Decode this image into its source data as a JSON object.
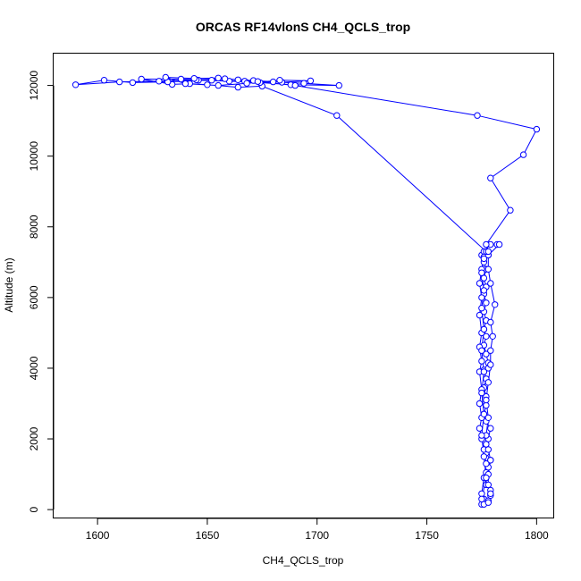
{
  "chart_data": {
    "type": "line",
    "title": "ORCAS RF14vlonS CH4_QCLS_trop",
    "xlabel": "CH4_QCLS_trop",
    "ylabel": "Altitude (m)",
    "xlim": [
      1580,
      1808
    ],
    "ylim": [
      -250,
      12900
    ],
    "xticks": [
      1600,
      1650,
      1700,
      1750,
      1800
    ],
    "yticks": [
      0,
      2000,
      4000,
      6000,
      8000,
      10000,
      12000
    ],
    "grid": false,
    "legend": "none",
    "series": [
      {
        "color": "#0000ff",
        "marker": "open-circle",
        "points": [
          [
            1775,
            150
          ],
          [
            1776,
            300
          ],
          [
            1778,
            250
          ],
          [
            1779,
            400
          ],
          [
            1779,
            550
          ],
          [
            1777,
            700
          ],
          [
            1777,
            900
          ],
          [
            1777,
            1050
          ],
          [
            1778,
            1200
          ],
          [
            1779,
            1400
          ],
          [
            1777,
            1600
          ],
          [
            1777,
            1850
          ],
          [
            1778,
            2000
          ],
          [
            1779,
            2300
          ],
          [
            1777,
            2500
          ],
          [
            1776,
            2700
          ],
          [
            1777,
            2950
          ],
          [
            1777,
            3200
          ],
          [
            1776,
            3450
          ],
          [
            1777,
            3700
          ],
          [
            1776,
            3950
          ],
          [
            1778,
            4000
          ],
          [
            1778,
            4150
          ],
          [
            1777,
            4400
          ],
          [
            1776,
            4650
          ],
          [
            1777,
            4900
          ],
          [
            1776,
            5100
          ],
          [
            1777,
            5350
          ],
          [
            1776,
            5600
          ],
          [
            1777,
            5850
          ],
          [
            1776,
            6100
          ],
          [
            1777,
            6300
          ],
          [
            1776,
            6550
          ],
          [
            1777,
            6800
          ],
          [
            1776,
            7000
          ],
          [
            1775,
            7200
          ],
          [
            1776,
            7300
          ],
          [
            1779,
            7500
          ],
          [
            1782,
            7500
          ],
          [
            1783,
            7500
          ],
          [
            1778,
            7200
          ],
          [
            1776,
            7150
          ],
          [
            1775,
            6800
          ],
          [
            1774,
            6400
          ],
          [
            1775,
            6000
          ],
          [
            1774,
            5500
          ],
          [
            1775,
            5000
          ],
          [
            1774,
            4600
          ],
          [
            1775,
            4200
          ],
          [
            1774,
            3900
          ],
          [
            1775,
            3400
          ],
          [
            1774,
            3000
          ],
          [
            1775,
            2600
          ],
          [
            1774,
            2300
          ],
          [
            1775,
            2000
          ],
          [
            1776,
            1700
          ],
          [
            1777,
            1300
          ],
          [
            1776,
            900
          ],
          [
            1775,
            450
          ],
          [
            1776,
            150
          ],
          [
            1778,
            200
          ],
          [
            1779,
            450
          ],
          [
            1778,
            700
          ],
          [
            1778,
            1000
          ],
          [
            1779,
            1400
          ],
          [
            1778,
            1700
          ],
          [
            1777,
            2100
          ],
          [
            1778,
            2600
          ],
          [
            1777,
            3100
          ],
          [
            1778,
            3600
          ],
          [
            1779,
            4100
          ],
          [
            1779,
            4500
          ],
          [
            1780,
            4900
          ],
          [
            1779,
            5300
          ],
          [
            1781,
            5800
          ],
          [
            1779,
            6400
          ],
          [
            1778,
            6800
          ],
          [
            1778,
            7200
          ],
          [
            1777,
            7300
          ],
          [
            1709,
            11150
          ],
          [
            1675,
            11980
          ],
          [
            1664,
            11950
          ],
          [
            1650,
            12020
          ],
          [
            1642,
            12050
          ],
          [
            1634,
            12030
          ],
          [
            1620,
            12180
          ],
          [
            1638,
            12180
          ],
          [
            1652,
            12150
          ],
          [
            1667,
            12120
          ],
          [
            1680,
            12100
          ],
          [
            1694,
            12060
          ],
          [
            1710,
            12000
          ],
          [
            1688,
            12020
          ],
          [
            1674,
            12080
          ],
          [
            1660,
            12120
          ],
          [
            1646,
            12150
          ],
          [
            1632,
            12100
          ],
          [
            1616,
            12080
          ],
          [
            1603,
            12150
          ],
          [
            1590,
            12020
          ],
          [
            1610,
            12100
          ],
          [
            1628,
            12120
          ],
          [
            1645,
            12160
          ],
          [
            1658,
            12190
          ],
          [
            1671,
            12140
          ],
          [
            1684,
            12090
          ],
          [
            1697,
            12130
          ],
          [
            1683,
            12150
          ],
          [
            1668,
            12060
          ],
          [
            1655,
            12000
          ],
          [
            1640,
            12050
          ],
          [
            1631,
            12230
          ],
          [
            1644,
            12200
          ],
          [
            1655,
            12210
          ],
          [
            1664,
            12160
          ],
          [
            1673,
            12110
          ],
          [
            1690,
            12000
          ],
          [
            1773,
            11150
          ],
          [
            1800,
            10760
          ],
          [
            1794,
            10040
          ],
          [
            1779,
            9380
          ],
          [
            1788,
            8470
          ],
          [
            1777,
            7500
          ],
          [
            1778,
            7300
          ],
          [
            1776,
            7100
          ],
          [
            1775,
            6700
          ],
          [
            1776,
            6200
          ],
          [
            1775,
            5700
          ],
          [
            1776,
            5100
          ],
          [
            1775,
            4500
          ],
          [
            1776,
            3900
          ],
          [
            1775,
            3300
          ],
          [
            1776,
            2700
          ],
          [
            1775,
            2100
          ],
          [
            1776,
            1500
          ],
          [
            1777,
            900
          ],
          [
            1775,
            300
          ]
        ]
      }
    ]
  }
}
